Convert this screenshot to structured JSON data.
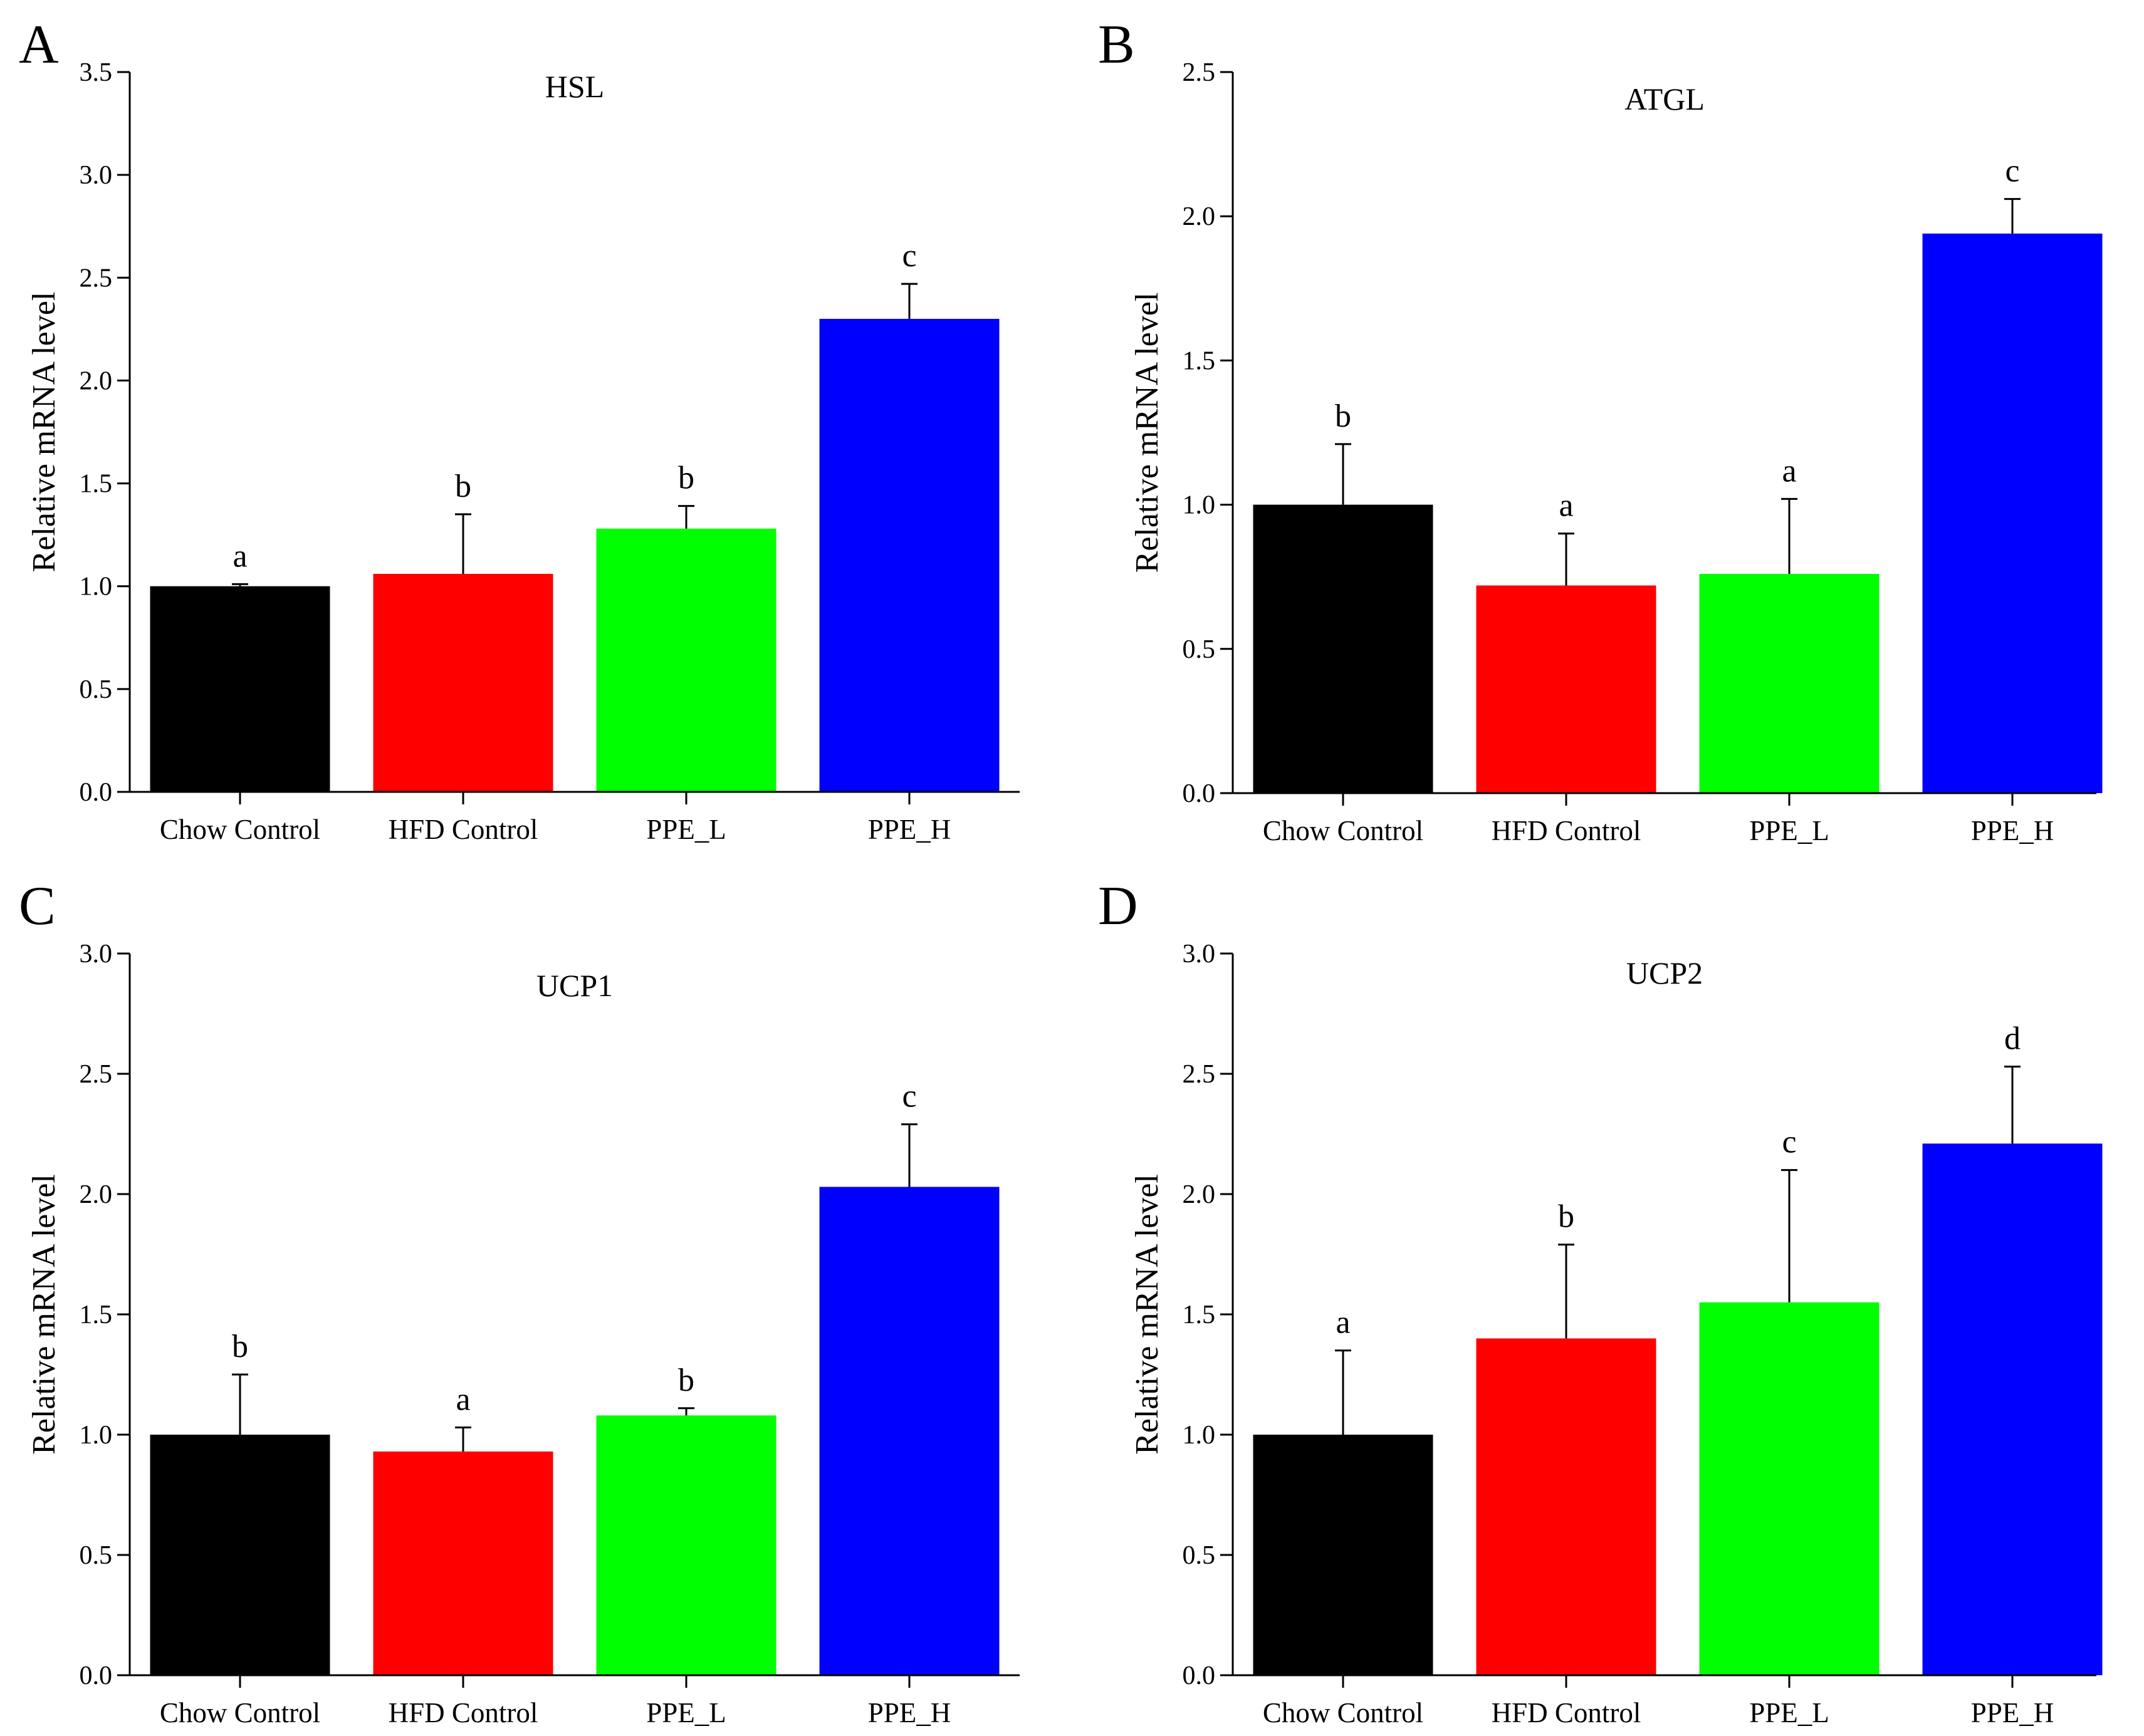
{
  "figure": {
    "panels": [
      "A",
      "B",
      "C",
      "D"
    ]
  },
  "chart_data": [
    {
      "panel": "A",
      "type": "bar",
      "title": "HSL",
      "xlabel": "",
      "ylabel": "Relative mRNA level",
      "categories": [
        "Chow Control",
        "HFD Control",
        "PPE_L",
        "PPE_H"
      ],
      "values": [
        1.0,
        1.06,
        1.28,
        2.3
      ],
      "errors": [
        0.01,
        0.29,
        0.11,
        0.17
      ],
      "significance": [
        "a",
        "b",
        "b",
        "c"
      ],
      "colors": [
        "#000000",
        "#ff0000",
        "#00ff00",
        "#0000ff"
      ],
      "ylim": [
        0,
        3.5
      ],
      "yticks": [
        "0.0",
        "0.5",
        "1.0",
        "1.5",
        "2.0",
        "2.5",
        "3.0",
        "3.5"
      ],
      "grid": false
    },
    {
      "panel": "B",
      "type": "bar",
      "title": "ATGL",
      "xlabel": "",
      "ylabel": "Relative mRNA level",
      "categories": [
        "Chow Control",
        "HFD Control",
        "PPE_L",
        "PPE_H"
      ],
      "values": [
        1.0,
        0.72,
        0.76,
        1.94
      ],
      "errors": [
        0.21,
        0.18,
        0.26,
        0.12
      ],
      "significance": [
        "b",
        "a",
        "a",
        "c"
      ],
      "colors": [
        "#000000",
        "#ff0000",
        "#00ff00",
        "#0000ff"
      ],
      "ylim": [
        0,
        2.5
      ],
      "yticks": [
        "0.0",
        "0.5",
        "1.0",
        "1.5",
        "2.0",
        "2.5"
      ],
      "grid": false
    },
    {
      "panel": "C",
      "type": "bar",
      "title": "UCP1",
      "xlabel": "",
      "ylabel": "Relative mRNA level",
      "categories": [
        "Chow Control",
        "HFD Control",
        "PPE_L",
        "PPE_H"
      ],
      "values": [
        1.0,
        0.93,
        1.08,
        2.03
      ],
      "errors": [
        0.25,
        0.1,
        0.03,
        0.26
      ],
      "significance": [
        "b",
        "a",
        "b",
        "c"
      ],
      "colors": [
        "#000000",
        "#ff0000",
        "#00ff00",
        "#0000ff"
      ],
      "ylim": [
        0,
        3.0
      ],
      "yticks": [
        "0.0",
        "0.5",
        "1.0",
        "1.5",
        "2.0",
        "2.5",
        "3.0"
      ],
      "grid": false
    },
    {
      "panel": "D",
      "type": "bar",
      "title": "UCP2",
      "xlabel": "",
      "ylabel": "Relative mRNA level",
      "categories": [
        "Chow Control",
        "HFD Control",
        "PPE_L",
        "PPE_H"
      ],
      "values": [
        1.0,
        1.4,
        1.55,
        2.21
      ],
      "errors": [
        0.35,
        0.39,
        0.55,
        0.32
      ],
      "significance": [
        "a",
        "b",
        "c",
        "d"
      ],
      "colors": [
        "#000000",
        "#ff0000",
        "#00ff00",
        "#0000ff"
      ],
      "ylim": [
        0,
        3.0
      ],
      "yticks": [
        "0.0",
        "0.5",
        "1.0",
        "1.5",
        "2.0",
        "2.5",
        "3.0"
      ],
      "grid": false
    }
  ]
}
